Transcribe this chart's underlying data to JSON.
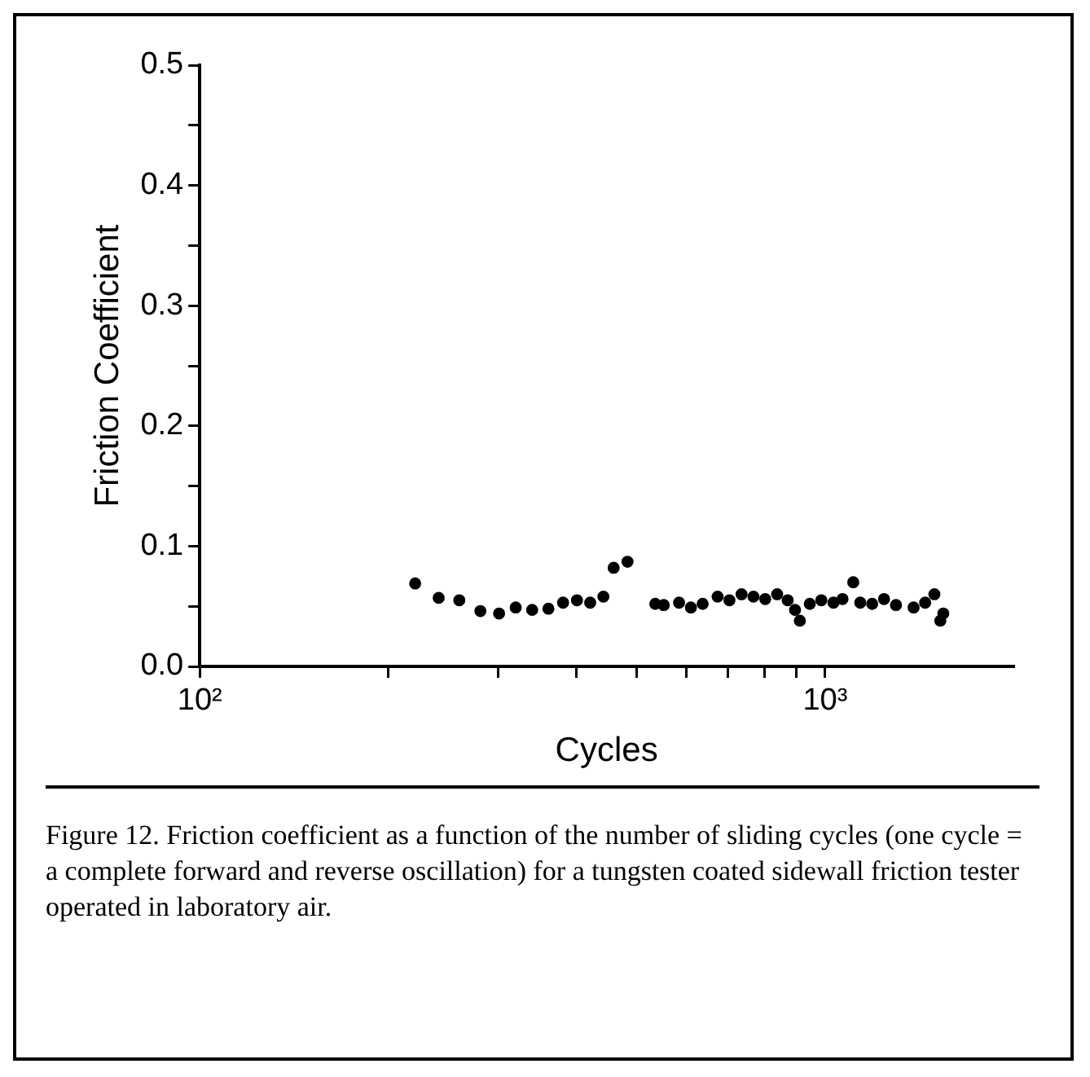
{
  "chart_data": {
    "type": "scatter",
    "xlabel": "Cycles",
    "ylabel": "Friction Coefficient",
    "log": "x",
    "grid": false,
    "legend": false,
    "marker": "circle",
    "xlim": [
      100,
      2000
    ],
    "xticks": [
      {
        "value": 100,
        "label": "10²"
      },
      {
        "value": 200,
        "label": null
      },
      {
        "value": 300,
        "label": null
      },
      {
        "value": 400,
        "label": null
      },
      {
        "value": 500,
        "label": null
      },
      {
        "value": 600,
        "label": null
      },
      {
        "value": 700,
        "label": null
      },
      {
        "value": 800,
        "label": null
      },
      {
        "value": 900,
        "label": null
      },
      {
        "value": 1000,
        "label": "10³"
      }
    ],
    "ylim": [
      0,
      0.5
    ],
    "yticks": [
      {
        "value": 0,
        "label": "0.0"
      },
      {
        "value": 0.05,
        "label": null
      },
      0.1,
      {
        "value": 0.15,
        "label": null
      },
      0.2,
      {
        "value": 0.25,
        "label": null
      },
      0.3,
      {
        "value": 0.35,
        "label": null
      },
      0.4,
      {
        "value": 0.45,
        "label": null
      },
      0.5
    ],
    "series": [
      {
        "color": "#000000",
        "x": [
          221,
          241,
          260,
          281,
          301,
          320,
          340,
          361,
          381,
          401,
          421,
          442,
          459,
          483,
          535,
          552,
          584,
          610,
          637,
          673,
          703,
          735,
          768,
          802,
          838,
          871,
          895,
          911,
          945,
          986,
          1031,
          1066,
          1109,
          1138,
          1189,
          1242,
          1298,
          1385,
          1445,
          1495,
          1528,
          1545
        ],
        "values": [
          0.069,
          0.057,
          0.055,
          0.046,
          0.044,
          0.049,
          0.047,
          0.048,
          0.053,
          0.055,
          0.053,
          0.058,
          0.082,
          0.087,
          0.052,
          0.051,
          0.053,
          0.049,
          0.052,
          0.058,
          0.055,
          0.06,
          0.058,
          0.056,
          0.06,
          0.055,
          0.047,
          0.038,
          0.052,
          0.055,
          0.053,
          0.056,
          0.07,
          0.053,
          0.052,
          0.056,
          0.051,
          0.049,
          0.053,
          0.06,
          0.038,
          0.044
        ]
      }
    ],
    "annotations": [
      "Figure 12.  Friction coefficient as a function of the number of sliding cycles (one cycle =  a complete forward and reverse oscillation) for a tungsten coated sidewall friction tester operated in laboratory air."
    ]
  }
}
